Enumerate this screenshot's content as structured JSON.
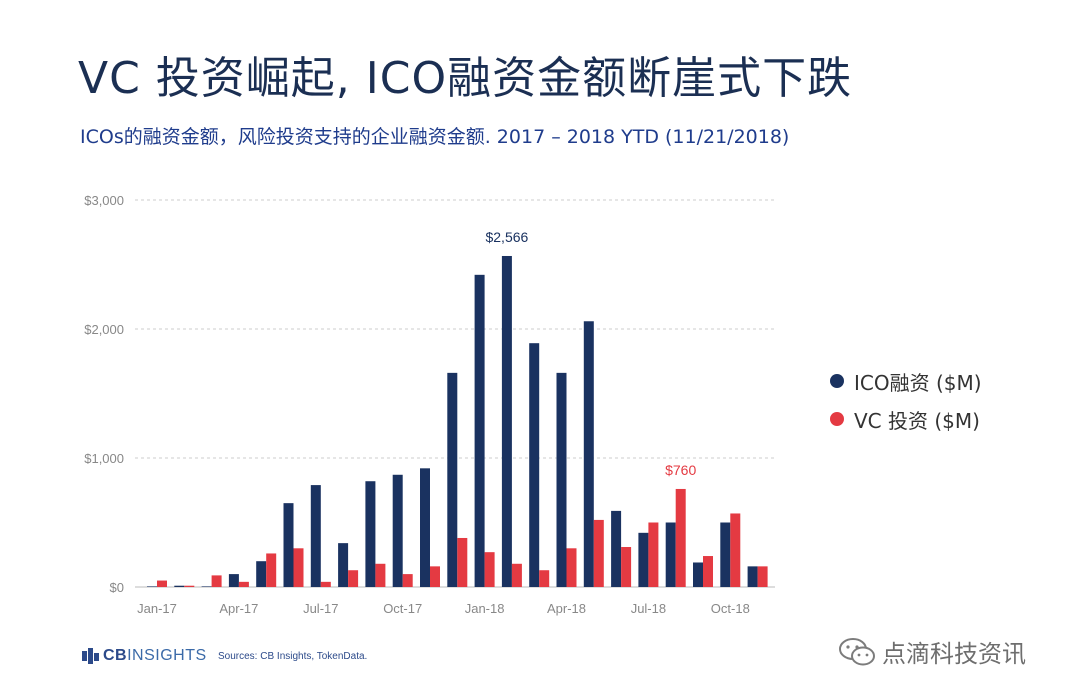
{
  "title": "VC 投资崛起, ICO融资金额断崖式下跌",
  "subtitle": "ICOs的融资金额，风险投资支持的企业融资金额. 2017 – 2018 YTD (11/21/2018)",
  "colors": {
    "ico": "#1a3260",
    "vc": "#e43a42",
    "grid": "#cccccc",
    "axis_text": "#888888"
  },
  "chart_data": {
    "type": "bar",
    "y_tick_labels": [
      "$0",
      "$1,000",
      "$2,000",
      "$3,000"
    ],
    "y_ticks": [
      0,
      1000,
      2000,
      3000
    ],
    "ylim": [
      0,
      3000
    ],
    "x_tick_labels": [
      "Jan-17",
      "Apr-17",
      "Jul-17",
      "Oct-17",
      "Jan-18",
      "Apr-18",
      "Jul-18",
      "Oct-18"
    ],
    "x_tick_label_month_index": [
      0,
      3,
      6,
      9,
      12,
      15,
      18,
      21
    ],
    "categories": [
      "Jan-17",
      "Feb-17",
      "Mar-17",
      "Apr-17",
      "May-17",
      "Jun-17",
      "Jul-17",
      "Aug-17",
      "Sep-17",
      "Oct-17",
      "Nov-17",
      "Dec-17",
      "Jan-18",
      "Feb-18",
      "Mar-18",
      "Apr-18",
      "May-18",
      "Jun-18",
      "Jul-18",
      "Aug-18",
      "Sep-18",
      "Oct-18",
      "Nov-18"
    ],
    "series": [
      {
        "name": "ICO融资 ($M)",
        "color": "#1a3260",
        "values": [
          0,
          10,
          0,
          100,
          200,
          650,
          790,
          340,
          820,
          870,
          920,
          1660,
          2420,
          2566,
          1890,
          1660,
          2060,
          590,
          420,
          500,
          190,
          500,
          160
        ]
      },
      {
        "name": "VC 投资 ($M)",
        "color": "#e43a42",
        "values": [
          50,
          10,
          90,
          40,
          260,
          300,
          40,
          130,
          180,
          100,
          160,
          380,
          270,
          180,
          130,
          300,
          520,
          310,
          500,
          760,
          240,
          570,
          160
        ]
      }
    ],
    "annotations": [
      {
        "text": "$2,566",
        "series": 0,
        "index": 13,
        "color": "#1a3260"
      },
      {
        "text": "$760",
        "series": 1,
        "index": 19,
        "color": "#e43a42"
      }
    ],
    "legend_position": "right",
    "grid": "horizontal"
  },
  "footer": {
    "logo_bold": "CB",
    "logo_light": "INSIGHTS",
    "source": "Sources: CB Insights, TokenData."
  },
  "watermark": {
    "text": "点滴科技资讯"
  }
}
